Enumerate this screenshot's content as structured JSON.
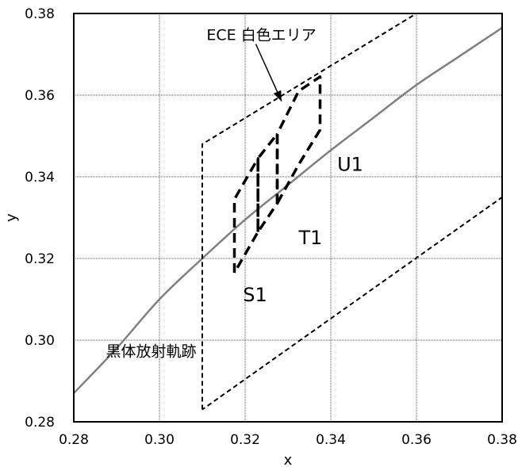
{
  "chart_data": {
    "type": "line",
    "xlabel": "x",
    "ylabel": "y",
    "xlim": [
      0.28,
      0.38
    ],
    "ylim": [
      0.28,
      0.38
    ],
    "x_ticks": [
      "0.28",
      "0.30",
      "0.32",
      "0.34",
      "0.36",
      "0.38"
    ],
    "y_ticks": [
      "0.28",
      "0.30",
      "0.32",
      "0.34",
      "0.36",
      "0.38"
    ],
    "grid": true,
    "series": [
      {
        "name": "黒体放射軌跡",
        "style": "solid",
        "color": "#808080",
        "points": [
          [
            0.28,
            0.287
          ],
          [
            0.29,
            0.298
          ],
          [
            0.3,
            0.31
          ],
          [
            0.31,
            0.32
          ],
          [
            0.32,
            0.3295
          ],
          [
            0.33,
            0.338
          ],
          [
            0.34,
            0.3465
          ],
          [
            0.35,
            0.3545
          ],
          [
            0.36,
            0.3625
          ],
          [
            0.37,
            0.3695
          ],
          [
            0.38,
            0.3765
          ]
        ]
      },
      {
        "name": "ECE 白色エリア",
        "style": "dashed-fine",
        "color": "#000000",
        "points": [
          [
            0.31,
            0.283
          ],
          [
            0.31,
            0.348
          ],
          [
            0.36,
            0.38
          ],
          [
            0.38,
            0.38
          ],
          [
            0.38,
            0.335
          ],
          [
            0.31,
            0.283
          ]
        ]
      },
      {
        "name": "S1",
        "style": "dashed-bold",
        "color": "#000000",
        "points": [
          [
            0.3175,
            0.3165
          ],
          [
            0.3175,
            0.3345
          ],
          [
            0.323,
            0.3445
          ],
          [
            0.323,
            0.3265
          ],
          [
            0.3175,
            0.3165
          ]
        ]
      },
      {
        "name": "T1",
        "style": "dashed-bold",
        "color": "#000000",
        "points": [
          [
            0.323,
            0.3265
          ],
          [
            0.323,
            0.3445
          ],
          [
            0.3275,
            0.3505
          ],
          [
            0.3275,
            0.3335
          ],
          [
            0.323,
            0.3265
          ]
        ]
      },
      {
        "name": "U1",
        "style": "dashed-bold",
        "color": "#000000",
        "points": [
          [
            0.3275,
            0.3335
          ],
          [
            0.3275,
            0.3505
          ],
          [
            0.3325,
            0.361
          ],
          [
            0.3375,
            0.3645
          ],
          [
            0.3375,
            0.3515
          ],
          [
            0.3325,
            0.343
          ],
          [
            0.3275,
            0.3335
          ]
        ]
      }
    ],
    "annotations": [
      {
        "name": "ece-label",
        "text": "ECE 白色エリア",
        "x": 0.311,
        "y": 0.3735,
        "size": "medium"
      },
      {
        "name": "blackbody-label",
        "text": "黒体放射軌跡",
        "x": 0.2875,
        "y": 0.296,
        "size": "medium"
      },
      {
        "name": "s1-label",
        "text": "S1",
        "x": 0.3195,
        "y": 0.3095,
        "size": "large"
      },
      {
        "name": "t1-label",
        "text": "T1",
        "x": 0.3325,
        "y": 0.3235,
        "size": "large"
      },
      {
        "name": "u1-label",
        "text": "U1",
        "x": 0.3415,
        "y": 0.3415,
        "size": "large"
      }
    ],
    "arrow": {
      "from": [
        0.3225,
        0.3725
      ],
      "to": [
        0.3285,
        0.3585
      ]
    }
  }
}
